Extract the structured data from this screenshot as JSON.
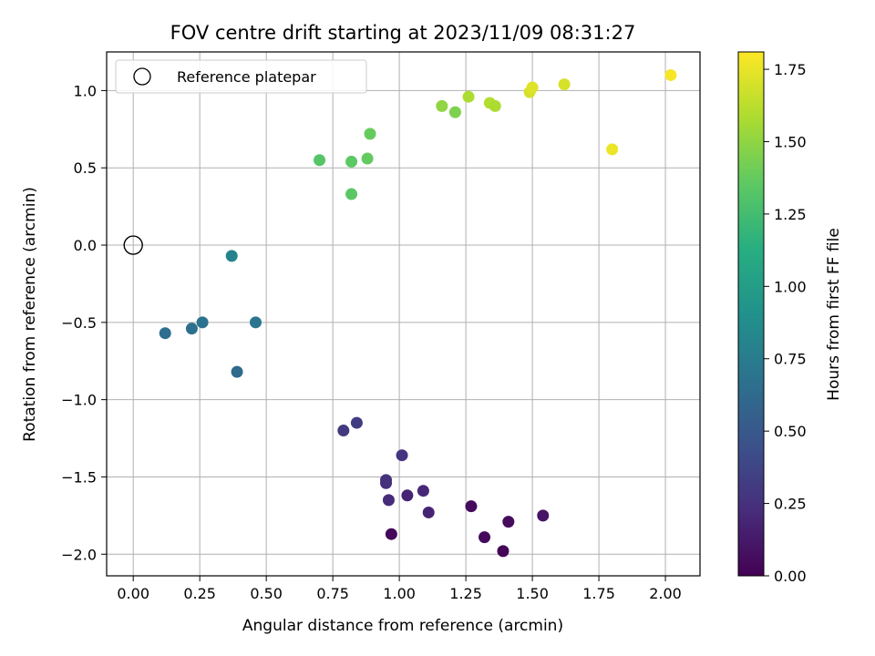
{
  "chart_data": {
    "type": "scatter",
    "title": "FOV centre drift starting at 2023/11/09 08:31:27",
    "xlabel": "Angular distance from reference (arcmin)",
    "ylabel": "Rotation from reference (arcmin)",
    "xlim": [
      -0.1,
      2.13
    ],
    "ylim": [
      -2.14,
      1.25
    ],
    "xticks": [
      0.0,
      0.25,
      0.5,
      0.75,
      1.0,
      1.25,
      1.5,
      1.75,
      2.0
    ],
    "xtick_labels": [
      "0.00",
      "0.25",
      "0.50",
      "0.75",
      "1.00",
      "1.25",
      "1.50",
      "1.75",
      "2.00"
    ],
    "yticks": [
      -2.0,
      -1.5,
      -1.0,
      -0.5,
      0.0,
      0.5,
      1.0
    ],
    "ytick_labels": [
      "−2.0",
      "−1.5",
      "−1.0",
      "−0.5",
      "0.0",
      "0.5",
      "1.0"
    ],
    "grid": true,
    "legend": {
      "location": "upper-left",
      "entries": [
        {
          "label": "Reference platepar",
          "marker": "open-circle"
        }
      ]
    },
    "reference_point": {
      "x": 0.0,
      "y": 0.0
    },
    "colorbar": {
      "label": "Hours from first FF file",
      "range": [
        0.0,
        1.81
      ],
      "ticks": [
        0.0,
        0.25,
        0.5,
        0.75,
        1.0,
        1.25,
        1.5,
        1.75
      ],
      "tick_labels": [
        "0.00",
        "0.25",
        "0.50",
        "0.75",
        "1.00",
        "1.25",
        "1.50",
        "1.75"
      ],
      "colormap": "viridis"
    },
    "points": [
      {
        "x": 0.97,
        "y": -1.87,
        "hours": 0.03
      },
      {
        "x": 1.39,
        "y": -1.98,
        "hours": 0.02
      },
      {
        "x": 1.32,
        "y": -1.89,
        "hours": 0.04
      },
      {
        "x": 1.41,
        "y": -1.79,
        "hours": 0.05
      },
      {
        "x": 1.27,
        "y": -1.69,
        "hours": 0.05
      },
      {
        "x": 1.54,
        "y": -1.75,
        "hours": 0.1
      },
      {
        "x": 1.11,
        "y": -1.73,
        "hours": 0.18
      },
      {
        "x": 1.03,
        "y": -1.62,
        "hours": 0.18
      },
      {
        "x": 1.09,
        "y": -1.59,
        "hours": 0.2
      },
      {
        "x": 0.96,
        "y": -1.65,
        "hours": 0.22
      },
      {
        "x": 0.95,
        "y": -1.54,
        "hours": 0.24
      },
      {
        "x": 0.95,
        "y": -1.52,
        "hours": 0.25
      },
      {
        "x": 1.01,
        "y": -1.36,
        "hours": 0.27
      },
      {
        "x": 0.79,
        "y": -1.2,
        "hours": 0.3
      },
      {
        "x": 0.84,
        "y": -1.15,
        "hours": 0.32
      },
      {
        "x": 0.39,
        "y": -0.82,
        "hours": 0.62
      },
      {
        "x": 0.12,
        "y": -0.57,
        "hours": 0.65
      },
      {
        "x": 0.22,
        "y": -0.54,
        "hours": 0.66
      },
      {
        "x": 0.26,
        "y": -0.5,
        "hours": 0.68
      },
      {
        "x": 0.46,
        "y": -0.5,
        "hours": 0.7
      },
      {
        "x": 0.37,
        "y": -0.07,
        "hours": 0.8
      },
      {
        "x": 0.7,
        "y": 0.55,
        "hours": 1.32
      },
      {
        "x": 0.82,
        "y": 0.33,
        "hours": 1.34
      },
      {
        "x": 0.82,
        "y": 0.54,
        "hours": 1.35
      },
      {
        "x": 0.88,
        "y": 0.56,
        "hours": 1.37
      },
      {
        "x": 0.89,
        "y": 0.72,
        "hours": 1.38
      },
      {
        "x": 1.16,
        "y": 0.9,
        "hours": 1.5
      },
      {
        "x": 1.21,
        "y": 0.86,
        "hours": 1.45
      },
      {
        "x": 1.26,
        "y": 0.96,
        "hours": 1.58
      },
      {
        "x": 1.34,
        "y": 0.92,
        "hours": 1.6
      },
      {
        "x": 1.36,
        "y": 0.9,
        "hours": 1.58
      },
      {
        "x": 1.49,
        "y": 0.99,
        "hours": 1.7
      },
      {
        "x": 1.5,
        "y": 1.02,
        "hours": 1.72
      },
      {
        "x": 1.62,
        "y": 1.04,
        "hours": 1.7
      },
      {
        "x": 1.8,
        "y": 0.62,
        "hours": 1.76
      },
      {
        "x": 2.02,
        "y": 1.1,
        "hours": 1.79
      }
    ]
  }
}
